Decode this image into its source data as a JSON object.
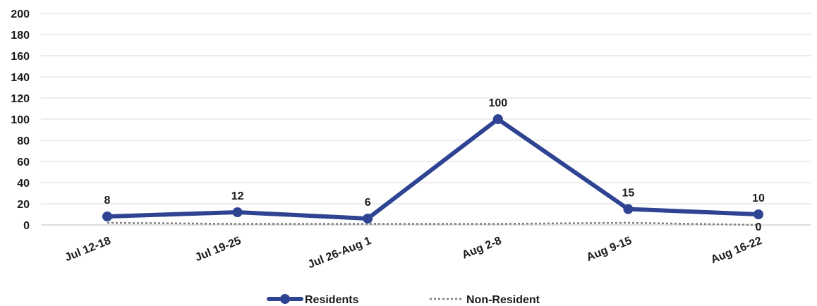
{
  "chart_data": {
    "type": "line",
    "categories": [
      "Jul 12-18",
      "Jul 19-25",
      "Jul 26-Aug 1",
      "Aug 2-8",
      "Aug 9-15",
      "Aug 16-22"
    ],
    "series": [
      {
        "name": "Residents",
        "values": [
          8,
          12,
          6,
          100,
          15,
          10
        ],
        "color": "#2e4493",
        "style": "solid",
        "markers": true,
        "data_labels": true
      },
      {
        "name": "Non-Resident",
        "values": [
          2,
          1,
          1,
          1,
          2,
          0
        ],
        "color": "#7f7f7f",
        "style": "dotted",
        "markers": false,
        "data_labels": [
          null,
          null,
          null,
          null,
          null,
          "0"
        ]
      }
    ],
    "ylim": [
      0,
      200
    ],
    "yticks": [
      0,
      20,
      40,
      60,
      80,
      100,
      120,
      140,
      160,
      180,
      200
    ],
    "grid": true,
    "legend": "bottom-center"
  }
}
